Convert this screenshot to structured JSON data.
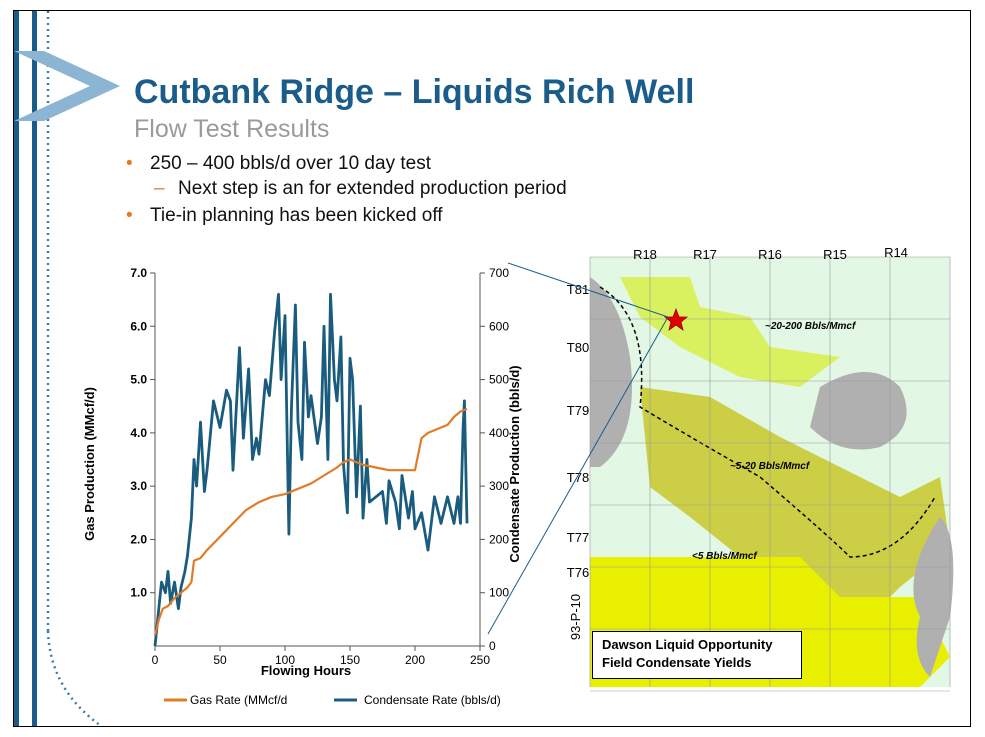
{
  "slide": {
    "title": "Cutbank Ridge – Liquids Rich Well",
    "subtitle": "Flow Test Results",
    "bullets": [
      {
        "marker": "•",
        "text": "250 – 400 bbls/d over 10 day test"
      },
      {
        "marker": "–",
        "text": "Next step is an for extended production period"
      },
      {
        "marker": "•",
        "text": "Tie-in planning has been kicked off"
      }
    ],
    "accent_color": "#1a5c8a",
    "bullet_color": "#e07b28"
  },
  "chart_data": {
    "type": "line",
    "xlabel": "Flowing Hours",
    "ylabel": "Gas Production (MMcf/d)",
    "y2label": "Condensate Production (bbls/d)",
    "xlim": [
      0,
      250
    ],
    "ylim": [
      0,
      7
    ],
    "y2lim": [
      0,
      700
    ],
    "xticks": [
      "0",
      "50",
      "100",
      "150",
      "200",
      "250"
    ],
    "yticks": [
      "1.0",
      "2.0",
      "3.0",
      "4.0",
      "5.0",
      "6.0",
      "7.0"
    ],
    "y2ticks": [
      "0",
      "100",
      "200",
      "300",
      "400",
      "500",
      "600",
      "700"
    ],
    "grid": false,
    "legend": "bottom",
    "series": [
      {
        "name": "Gas Rate",
        "legend_label": "Gas Rate   (MMcf/d",
        "axis": "left",
        "color": "#e07b28",
        "x": [
          0,
          3,
          6,
          10,
          15,
          20,
          25,
          28,
          30,
          35,
          40,
          50,
          60,
          70,
          80,
          90,
          100,
          110,
          120,
          130,
          140,
          145,
          150,
          160,
          170,
          180,
          190,
          200,
          205,
          210,
          220,
          225,
          230,
          235,
          240
        ],
        "y": [
          0.2,
          0.5,
          0.7,
          0.75,
          0.9,
          1.0,
          1.1,
          1.2,
          1.6,
          1.65,
          1.8,
          2.05,
          2.3,
          2.55,
          2.7,
          2.8,
          2.85,
          2.95,
          3.05,
          3.2,
          3.35,
          3.45,
          3.5,
          3.4,
          3.35,
          3.3,
          3.3,
          3.3,
          3.9,
          4.0,
          4.1,
          4.15,
          4.3,
          4.4,
          4.45
        ]
      },
      {
        "name": "Condensate Rate",
        "legend_label": "Condensate Rate (bbls/d)",
        "axis": "right",
        "color": "#1a5c7e",
        "x": [
          0,
          5,
          8,
          10,
          12,
          15,
          18,
          20,
          23,
          25,
          28,
          30,
          32,
          35,
          38,
          40,
          45,
          50,
          55,
          58,
          60,
          65,
          68,
          72,
          75,
          78,
          80,
          85,
          88,
          92,
          95,
          97,
          100,
          103,
          105,
          108,
          110,
          113,
          115,
          118,
          120,
          125,
          128,
          130,
          133,
          135,
          138,
          140,
          143,
          145,
          148,
          150,
          152,
          155,
          158,
          160,
          163,
          165,
          170,
          175,
          178,
          180,
          185,
          188,
          190,
          195,
          198,
          200,
          205,
          210,
          215,
          220,
          225,
          228,
          230,
          233,
          235,
          237,
          238,
          240
        ],
        "y": [
          0,
          120,
          100,
          140,
          80,
          120,
          70,
          110,
          140,
          170,
          240,
          350,
          300,
          420,
          290,
          330,
          460,
          410,
          480,
          460,
          330,
          560,
          390,
          520,
          350,
          390,
          360,
          500,
          470,
          590,
          660,
          500,
          620,
          210,
          450,
          640,
          420,
          350,
          570,
          430,
          470,
          380,
          430,
          600,
          350,
          660,
          500,
          460,
          580,
          340,
          250,
          540,
          500,
          280,
          450,
          240,
          350,
          270,
          280,
          290,
          230,
          310,
          270,
          220,
          320,
          240,
          290,
          220,
          250,
          180,
          280,
          230,
          280,
          250,
          230,
          280,
          230,
          410,
          460,
          230
        ]
      }
    ]
  },
  "map": {
    "ranges": [
      "R18",
      "R17",
      "R16",
      "R15",
      "R14"
    ],
    "townships": [
      "T81",
      "T80",
      "T79",
      "T78",
      "T77",
      "T76"
    ],
    "side_label": "93-P-10",
    "zones": [
      "~20-200 Bbls/Mmcf",
      "~5-20 Bbls/Mmcf",
      "<5 Bbls/Mmcf"
    ],
    "legend_title": "Dawson Liquid Opportunity",
    "legend_subtitle": "Field Condensate Yields"
  }
}
